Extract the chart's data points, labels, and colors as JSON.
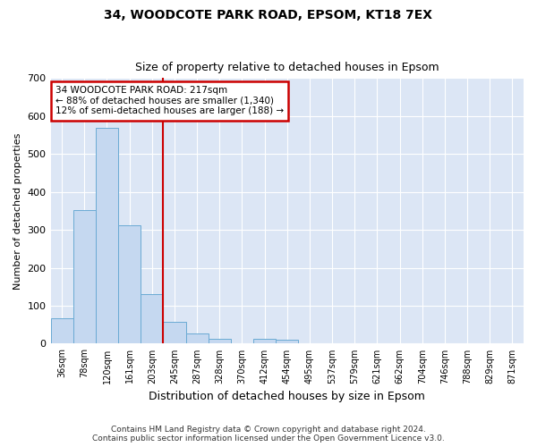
{
  "title1": "34, WOODCOTE PARK ROAD, EPSOM, KT18 7EX",
  "title2": "Size of property relative to detached houses in Epsom",
  "xlabel": "Distribution of detached houses by size in Epsom",
  "ylabel": "Number of detached properties",
  "categories": [
    "36sqm",
    "78sqm",
    "120sqm",
    "161sqm",
    "203sqm",
    "245sqm",
    "287sqm",
    "328sqm",
    "370sqm",
    "412sqm",
    "454sqm",
    "495sqm",
    "537sqm",
    "579sqm",
    "621sqm",
    "662sqm",
    "704sqm",
    "746sqm",
    "788sqm",
    "829sqm",
    "871sqm"
  ],
  "values": [
    68,
    353,
    568,
    311,
    130,
    57,
    27,
    13,
    0,
    13,
    10,
    0,
    0,
    0,
    0,
    0,
    0,
    0,
    0,
    0,
    0
  ],
  "bar_color": "#c5d8f0",
  "bar_edge_color": "#6aaad4",
  "annotation_text": "34 WOODCOTE PARK ROAD: 217sqm\n← 88% of detached houses are smaller (1,340)\n12% of semi-detached houses are larger (188) →",
  "annotation_box_color": "#ffffff",
  "annotation_box_edge": "#cc0000",
  "vline_color": "#cc0000",
  "vline_x": 4.5,
  "bg_color": "#dce6f5",
  "plot_bg": "#dce6f5",
  "fig_bg": "#ffffff",
  "grid_color": "#ffffff",
  "footer": "Contains HM Land Registry data © Crown copyright and database right 2024.\nContains public sector information licensed under the Open Government Licence v3.0.",
  "ylim": [
    0,
    700
  ],
  "yticks": [
    0,
    100,
    200,
    300,
    400,
    500,
    600,
    700
  ]
}
